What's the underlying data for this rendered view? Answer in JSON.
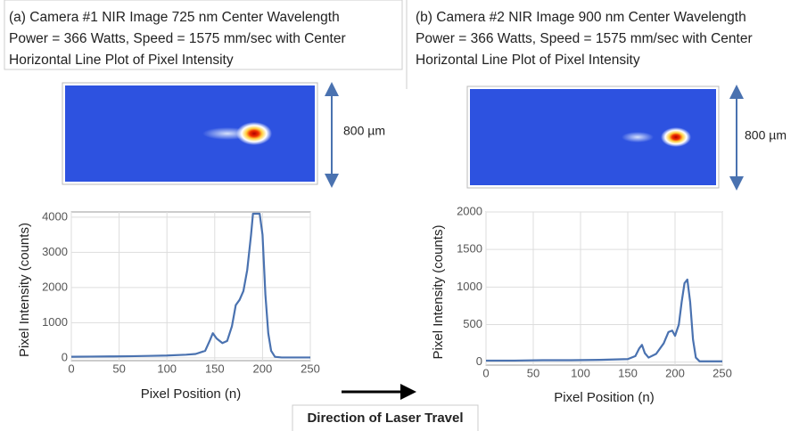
{
  "annotation": "Direction of Laser Travel",
  "chart_data": [
    {
      "type": "line",
      "title_lines": [
        "(a) Camera #1 NIR Image 725 nm Center Wavelength",
        "Power = 366 Watts, Speed = 1575 mm/sec with Center",
        "Horizontal Line Plot of Pixel Intensity"
      ],
      "scale_label": "800 µm",
      "xlabel": "Pixel Position (n)",
      "ylabel": "Pixel Intensity (counts)",
      "x": [
        0,
        20,
        40,
        60,
        80,
        100,
        120,
        130,
        140,
        145,
        148,
        152,
        158,
        163,
        168,
        172,
        176,
        180,
        184,
        188,
        190,
        192,
        197,
        200,
        203,
        206,
        209,
        213,
        220,
        235,
        250
      ],
      "values": [
        30,
        35,
        40,
        45,
        55,
        65,
        90,
        110,
        200,
        500,
        700,
        550,
        420,
        480,
        900,
        1500,
        1650,
        1900,
        2500,
        3500,
        4100,
        4100,
        4100,
        3500,
        1800,
        700,
        200,
        30,
        10,
        10,
        10
      ],
      "color": "#4a72b0",
      "xlim": [
        0,
        250
      ],
      "xticks": [
        0,
        50,
        100,
        150,
        200,
        250
      ],
      "ylim": [
        -80,
        4150
      ],
      "yticks": [
        0,
        1000,
        2000,
        3000,
        4000
      ],
      "grid": true
    },
    {
      "type": "line",
      "title_lines": [
        "(b) Camera #2 NIR Image 900 nm Center Wavelength",
        "Power = 366 Watts, Speed = 1575 mm/sec with Center",
        "Horizontal Line Plot of Pixel Intensity"
      ],
      "scale_label": "800 µm",
      "xlabel": "Pixel Position (n)",
      "ylabel": "Pixel Intensity (counts)",
      "x": [
        0,
        30,
        60,
        90,
        120,
        150,
        158,
        162,
        165,
        168,
        172,
        180,
        188,
        193,
        197,
        200,
        204,
        207,
        210,
        213,
        216,
        219,
        222,
        226,
        235,
        250
      ],
      "values": [
        20,
        20,
        25,
        25,
        30,
        40,
        80,
        180,
        230,
        120,
        60,
        110,
        250,
        400,
        420,
        350,
        500,
        800,
        1050,
        1100,
        800,
        300,
        60,
        10,
        10,
        10
      ],
      "color": "#4a72b0",
      "xlim": [
        0,
        250
      ],
      "xticks": [
        0,
        50,
        100,
        150,
        200,
        250
      ],
      "ylim": [
        -40,
        2000
      ],
      "yticks": [
        0,
        500,
        1000,
        1500,
        2000
      ],
      "grid": true
    }
  ]
}
